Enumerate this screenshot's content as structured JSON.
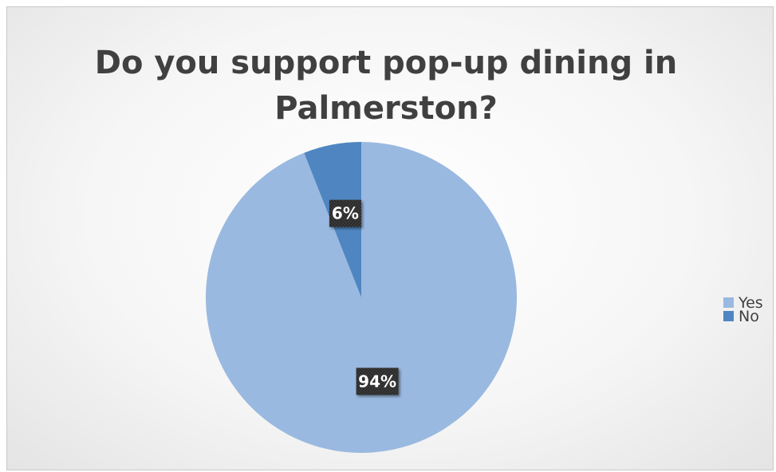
{
  "chart_data": {
    "type": "pie",
    "title_lines": [
      "Do you support pop-up dining in",
      "Palmerston?"
    ],
    "categories": [
      "Yes",
      "No"
    ],
    "values": [
      94,
      6
    ],
    "data_labels": [
      "94%",
      "6%"
    ],
    "colors": [
      "#9ab9e0",
      "#4f86c1"
    ],
    "legend_position": "right",
    "start_angle": "12 o'clock",
    "direction": "clockwise"
  }
}
